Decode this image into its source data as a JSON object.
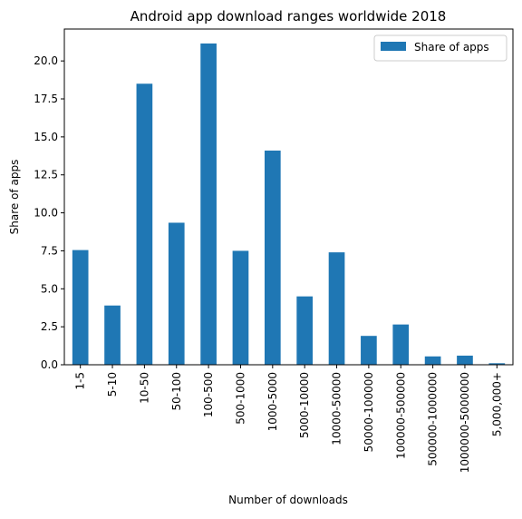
{
  "chart_data": {
    "type": "bar",
    "title": "Android app download ranges worldwide 2018",
    "xlabel": "Number of downloads",
    "ylabel": "Share of apps",
    "categories": [
      "1-5",
      "5-10",
      "10-50",
      "50-100",
      "100-500",
      "500-1000",
      "1000-5000",
      "5000-10000",
      "10000-50000",
      "50000-100000",
      "100000-500000",
      "500000-1000000",
      "1000000-5000000",
      "5,000,000+"
    ],
    "series": [
      {
        "name": "Share of apps",
        "values": [
          7.55,
          3.9,
          18.5,
          9.35,
          21.15,
          7.5,
          14.1,
          4.5,
          7.4,
          1.9,
          2.65,
          0.55,
          0.6,
          0.1
        ],
        "color": "#1f77b4"
      }
    ],
    "ylim": [
      0,
      22.1
    ],
    "yticks": [
      "0.0",
      "2.5",
      "5.0",
      "7.5",
      "10.0",
      "12.5",
      "15.0",
      "17.5",
      "20.0"
    ],
    "grid": false,
    "legend": "top-right"
  }
}
